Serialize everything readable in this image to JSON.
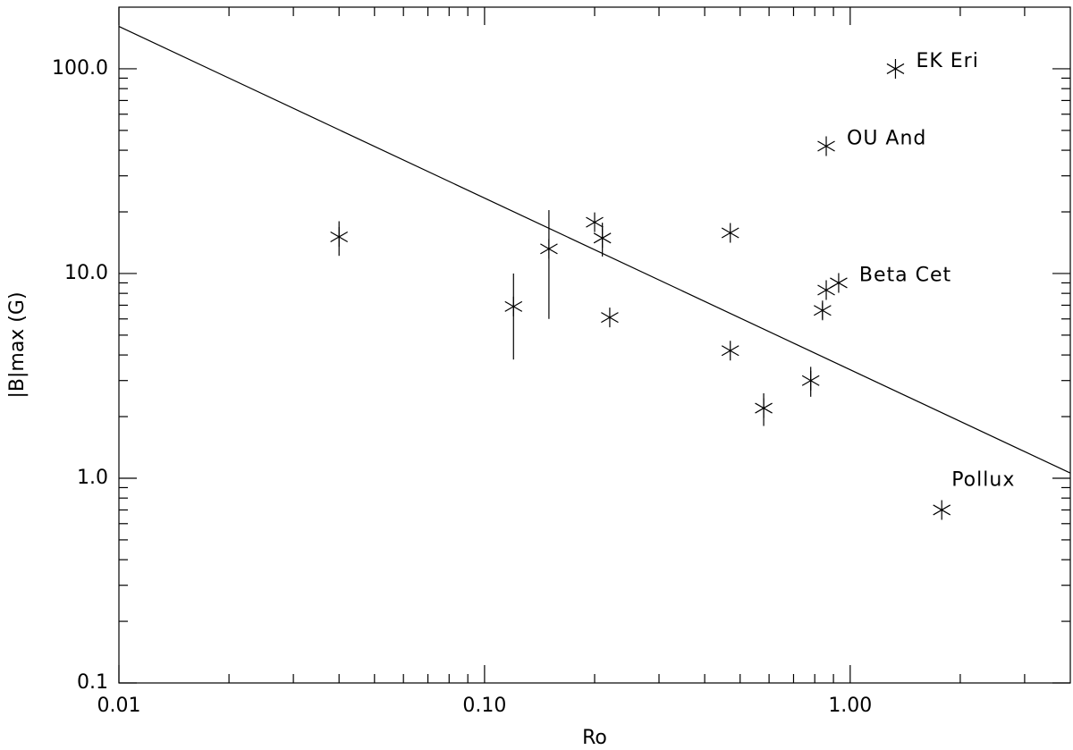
{
  "chart_data": {
    "type": "scatter",
    "xlabel": "Ro",
    "ylabel": "|B|max (G)",
    "xlog": true,
    "ylog": true,
    "color": "#000000",
    "xlim": [
      0.01,
      4.0
    ],
    "ylim": [
      0.1,
      200
    ],
    "xticks": [
      0.01,
      {
        "value": 0.1,
        "label": "0.10"
      },
      {
        "value": 1,
        "label": "1.00"
      }
    ],
    "yticks": [
      0.1,
      {
        "value": 1,
        "label": "1.0"
      },
      {
        "value": 10,
        "label": "10.0"
      },
      {
        "value": 100,
        "label": "100.0"
      }
    ],
    "xminorticks": [
      0.02,
      0.03,
      0.04,
      0.05,
      0.06,
      0.07,
      0.08,
      0.09,
      0.2,
      0.3,
      0.4,
      0.5,
      0.6,
      0.7,
      0.8,
      0.9,
      2,
      3
    ],
    "yminorticks": [
      0.2,
      0.3,
      0.4,
      0.5,
      0.6,
      0.7,
      0.8,
      0.9,
      2,
      3,
      4,
      5,
      6,
      7,
      8,
      9,
      20,
      30,
      40,
      50,
      60,
      70,
      80,
      90
    ],
    "x": [
      0.04,
      0.12,
      0.15,
      0.2,
      0.21,
      0.22,
      0.47,
      0.47,
      0.58,
      0.78,
      0.84,
      0.86,
      0.93,
      0.86,
      1.33,
      1.78
    ],
    "values": [
      15.1,
      6.9,
      13.2,
      17.8,
      14.9,
      6.1,
      15.8,
      4.2,
      2.2,
      3.0,
      6.6,
      8.3,
      9.0,
      41.9,
      100,
      0.7
    ],
    "yerr": [
      2.9,
      3.1,
      7.2,
      null,
      2.8,
      null,
      null,
      null,
      0.4,
      0.5,
      0.6,
      null,
      null,
      null,
      null,
      null
    ],
    "point_labels": [
      null,
      null,
      null,
      null,
      null,
      null,
      null,
      null,
      null,
      null,
      null,
      null,
      "Beta Cet",
      "OU And",
      "EK Eri",
      "Pollux"
    ],
    "fit": {
      "x": [
        0.01,
        4.0
      ],
      "values": [
        161,
        1.06
      ]
    }
  }
}
